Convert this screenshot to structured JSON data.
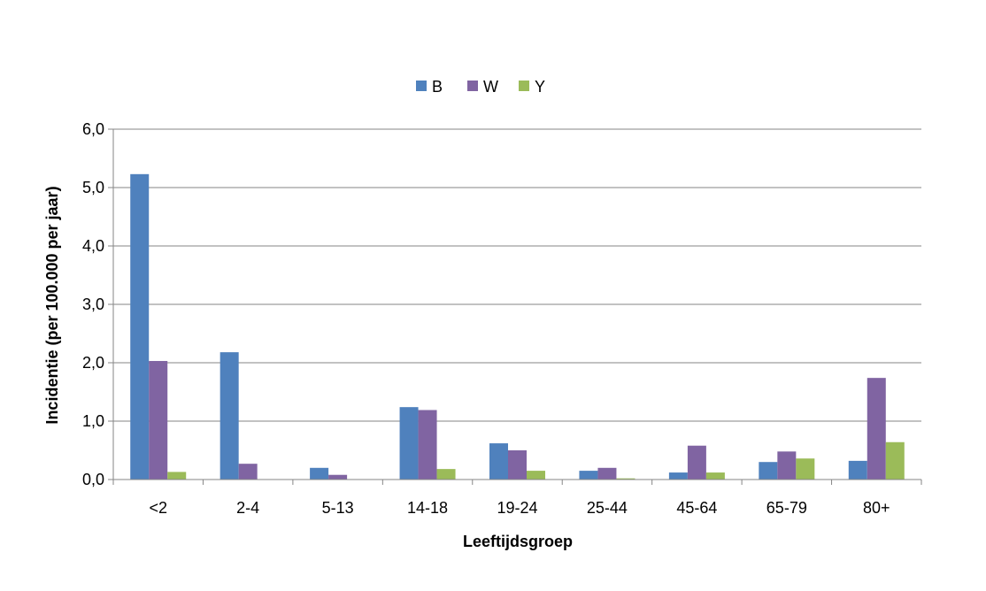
{
  "chart_data": {
    "type": "bar",
    "categories": [
      "<2",
      "2-4",
      "5-13",
      "14-18",
      "19-24",
      "25-44",
      "45-64",
      "65-79",
      "80+"
    ],
    "series": [
      {
        "name": "B",
        "color": "#4F81BD",
        "values": [
          5.23,
          2.18,
          0.2,
          1.24,
          0.62,
          0.15,
          0.12,
          0.3,
          0.32
        ]
      },
      {
        "name": "W",
        "color": "#8064A2",
        "values": [
          2.03,
          0.27,
          0.08,
          1.19,
          0.5,
          0.2,
          0.58,
          0.48,
          1.74
        ]
      },
      {
        "name": "Y",
        "color": "#9BBB59",
        "values": [
          0.13,
          0.0,
          0.0,
          0.18,
          0.15,
          0.02,
          0.12,
          0.36,
          0.64
        ]
      }
    ],
    "xlabel": "Leeftijdsgroep",
    "ylabel": "Incidentie (per 100.000 per jaar)",
    "ylim": [
      0,
      6
    ],
    "yticks": [
      "0,0",
      "1,0",
      "2,0",
      "3,0",
      "4,0",
      "5,0",
      "6,0"
    ],
    "grid": true,
    "legend_position": "top-center"
  }
}
